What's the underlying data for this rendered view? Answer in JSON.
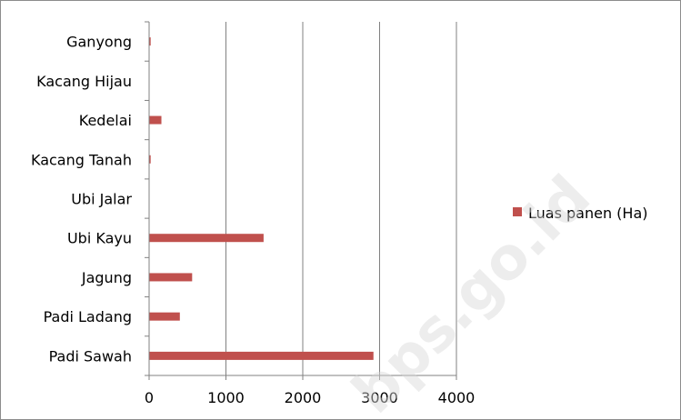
{
  "chart_data": {
    "type": "bar",
    "orientation": "horizontal",
    "categories": [
      "Padi Sawah",
      "Padi Ladang",
      "Jagung",
      "Ubi Kayu",
      "Ubi Jalar",
      "Kacang Tanah",
      "Kedelai",
      "Kacang Hijau",
      "Ganyong"
    ],
    "series": [
      {
        "name": "Luas panen (Ha)",
        "values": [
          2920,
          400,
          560,
          1490,
          0,
          20,
          160,
          0,
          20
        ],
        "color": "#c0504d"
      }
    ],
    "title": "",
    "xlabel": "",
    "ylabel": "",
    "xlim": [
      0,
      4000
    ],
    "x_ticks": [
      "0",
      "1000",
      "2000",
      "3000",
      "4000"
    ],
    "grid": "vertical",
    "legend_position": "right"
  },
  "watermark": "bps.go.id"
}
